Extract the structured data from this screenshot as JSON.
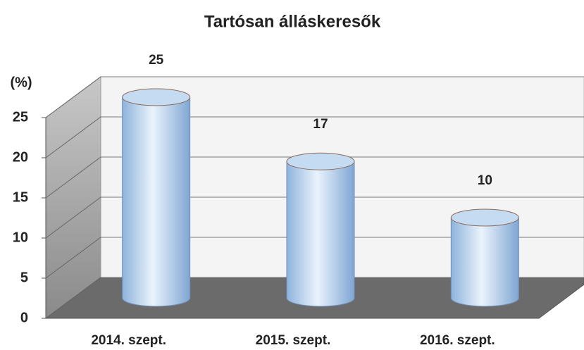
{
  "chart_data": {
    "type": "bar3d",
    "title": "Tartósan álláskeresők",
    "y_label": "(%)",
    "categories": [
      "2014. szept.",
      "2015. szept.",
      "2016. szept."
    ],
    "values": [
      25,
      17,
      10
    ],
    "color": "#a9c8ea",
    "ylim": [
      0,
      25
    ],
    "yticks": [
      0,
      5,
      10,
      15,
      20,
      25
    ],
    "grid": true
  }
}
